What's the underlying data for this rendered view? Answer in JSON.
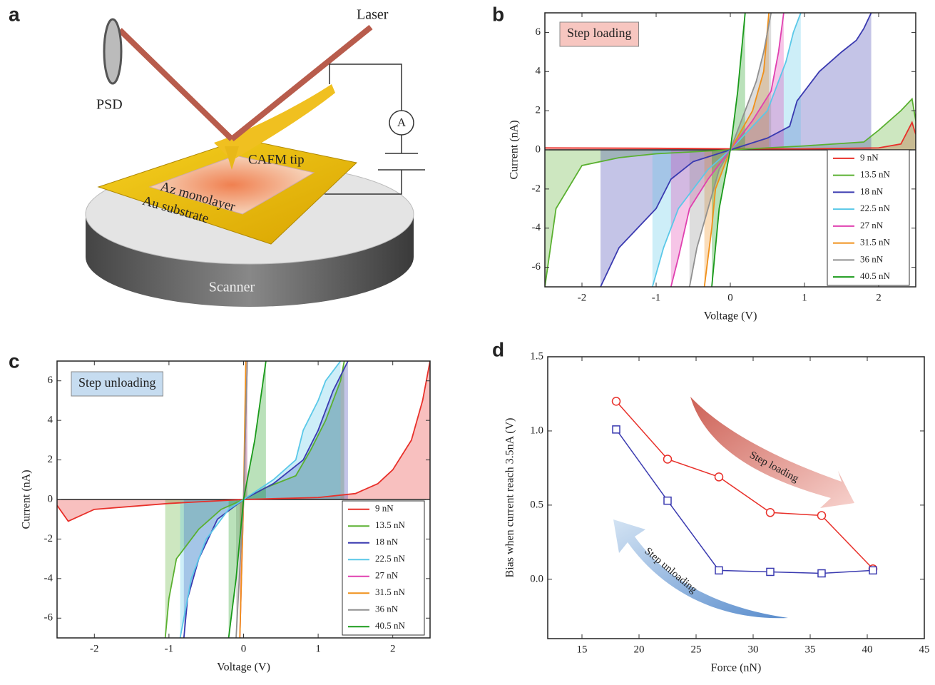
{
  "diagram": {
    "panel": "a",
    "laser": "Laser",
    "psd": "PSD",
    "ammeter": "A",
    "tip": "CAFM tip",
    "monolayer": "Az monolayer",
    "substrate": "Au substrate",
    "scanner": "Scanner"
  },
  "chart_data": [
    {
      "type": "area",
      "panel": "b",
      "annotation": "Step loading",
      "xlabel": "Voltage (V)",
      "ylabel": "Current (nA)",
      "xlim": [
        -2.5,
        2.5
      ],
      "ylim": [
        -7,
        7
      ],
      "xticks": [
        -2,
        -1,
        0,
        1,
        2
      ],
      "yticks": [
        -6,
        -4,
        -2,
        0,
        2,
        4,
        6
      ],
      "series": [
        {
          "name": "9 nN",
          "color": "#e8302a",
          "x": [
            -2.5,
            -1,
            0,
            1,
            2,
            2.3,
            2.45,
            2.5
          ],
          "values": [
            0.1,
            0.08,
            0.05,
            0.05,
            0.1,
            0.3,
            1.4,
            0.8
          ]
        },
        {
          "name": "13.5 nN",
          "color": "#5ab030",
          "x": [
            -2.5,
            -2.35,
            -2,
            -1.5,
            -1,
            0,
            1,
            1.8,
            2,
            2.3,
            2.45,
            2.5
          ],
          "values": [
            -7,
            -3,
            -0.8,
            -0.4,
            -0.2,
            0,
            0.2,
            0.4,
            1,
            2,
            2.6,
            1.5
          ]
        },
        {
          "name": "18 nN",
          "color": "#3a3ab0",
          "x": [
            -1.75,
            -1.5,
            -1,
            -0.8,
            -0.5,
            0,
            0.5,
            0.8,
            0.9,
            1.2,
            1.5,
            1.7,
            1.8,
            1.9
          ],
          "values": [
            -7,
            -5,
            -3,
            -1.5,
            -0.6,
            0,
            0.6,
            1.2,
            2.5,
            4,
            5,
            5.6,
            6.2,
            7
          ]
        },
        {
          "name": "22.5 nN",
          "color": "#5ac8e8",
          "x": [
            -1.05,
            -0.9,
            -0.7,
            -0.5,
            -0.3,
            0,
            0.3,
            0.5,
            0.6,
            0.75,
            0.85,
            0.95
          ],
          "values": [
            -7,
            -5,
            -3,
            -2,
            -1,
            0,
            1.2,
            2,
            3,
            4.5,
            6,
            7
          ]
        },
        {
          "name": "27 nN",
          "color": "#e040b0",
          "x": [
            -0.8,
            -0.7,
            -0.55,
            -0.3,
            0,
            0.3,
            0.55,
            0.65,
            0.72
          ],
          "values": [
            -7,
            -5.5,
            -3,
            -1.5,
            0,
            1.5,
            3,
            5,
            7
          ]
        },
        {
          "name": "31.5 nN",
          "color": "#f0901a",
          "x": [
            -0.35,
            -0.25,
            -0.2,
            0,
            0.3,
            0.45,
            0.52
          ],
          "values": [
            -7,
            -4,
            -2,
            0,
            2,
            4,
            7
          ]
        },
        {
          "name": "36 nN",
          "color": "#909090",
          "x": [
            -0.55,
            -0.45,
            -0.3,
            -0.15,
            0,
            0.2,
            0.35,
            0.45,
            0.55
          ],
          "values": [
            -7,
            -5,
            -3,
            -1,
            0,
            2,
            3.5,
            5,
            7
          ]
        },
        {
          "name": "40.5 nN",
          "color": "#1a9a1a",
          "x": [
            -0.25,
            -0.15,
            0,
            0.1,
            0.2
          ],
          "values": [
            -7,
            -3,
            0,
            3,
            7
          ]
        }
      ]
    },
    {
      "type": "area",
      "panel": "c",
      "annotation": "Step unloading",
      "xlabel": "Voltage (V)",
      "ylabel": "Current (nA)",
      "xlim": [
        -2.5,
        2.5
      ],
      "ylim": [
        -7,
        7
      ],
      "xticks": [
        -2,
        -1,
        0,
        1,
        2
      ],
      "yticks": [
        -6,
        -4,
        -2,
        0,
        2,
        4,
        6
      ],
      "series": [
        {
          "name": "9 nN",
          "color": "#e8302a",
          "x": [
            -2.5,
            -2.35,
            -2,
            -1,
            0,
            1,
            1.5,
            1.8,
            2,
            2.25,
            2.4,
            2.5
          ],
          "values": [
            -0.3,
            -1.1,
            -0.5,
            -0.2,
            0,
            0.1,
            0.3,
            0.8,
            1.5,
            3,
            5,
            7
          ]
        },
        {
          "name": "13.5 nN",
          "color": "#5ab030",
          "x": [
            -1.05,
            -1,
            -0.9,
            -0.6,
            -0.3,
            0,
            0.3,
            0.7,
            0.9,
            1.1,
            1.3,
            1.35
          ],
          "values": [
            -7,
            -5,
            -3,
            -1.5,
            -0.5,
            0,
            0.6,
            1.2,
            2.5,
            4,
            6,
            7
          ]
        },
        {
          "name": "18 nN",
          "color": "#3a3ab0",
          "x": [
            -0.8,
            -0.75,
            -0.6,
            -0.35,
            0,
            0.4,
            0.8,
            1,
            1.2,
            1.4
          ],
          "values": [
            -7,
            -5,
            -3,
            -1,
            0,
            0.8,
            2,
            3.5,
            5.5,
            7
          ]
        },
        {
          "name": "22.5 nN",
          "color": "#5ac8e8",
          "x": [
            -0.85,
            -0.7,
            -0.5,
            -0.2,
            0,
            0.4,
            0.7,
            0.8,
            1,
            1.1,
            1.3
          ],
          "values": [
            -7,
            -4,
            -2,
            -0.5,
            0,
            1,
            2,
            3.5,
            5,
            6,
            7
          ]
        },
        {
          "name": "27 nN",
          "color": "#e040b0",
          "x": [
            -0.05,
            0,
            0.05
          ],
          "values": [
            -7,
            0,
            7
          ]
        },
        {
          "name": "31.5 nN",
          "color": "#f0901a",
          "x": [
            -0.05,
            0,
            0.03
          ],
          "values": [
            -7,
            0,
            7
          ]
        },
        {
          "name": "36 nN",
          "color": "#909090",
          "x": [
            -0.1,
            0,
            0.05
          ],
          "values": [
            -7,
            0,
            7
          ]
        },
        {
          "name": "40.5 nN",
          "color": "#1a9a1a",
          "x": [
            -0.2,
            -0.1,
            0,
            0.15,
            0.3
          ],
          "values": [
            -7,
            -4,
            0,
            3,
            7
          ]
        }
      ]
    },
    {
      "type": "line",
      "panel": "d",
      "xlabel": "Force (nN)",
      "ylabel": "Bias when current reach 3.5nA (V)",
      "xlim": [
        12,
        45
      ],
      "ylim": [
        -0.4,
        1.5
      ],
      "xticks": [
        15,
        20,
        25,
        30,
        35,
        40,
        45
      ],
      "yticks": [
        {
          "value": 0,
          "label": "0.0"
        },
        0.5,
        {
          "value": 1,
          "label": "1.0"
        },
        1.5
      ],
      "series": [
        {
          "name": "Step loading",
          "color": "#e8302a",
          "marker": "circle",
          "x": [
            18,
            22.5,
            27,
            31.5,
            36,
            40.5
          ],
          "values": [
            1.2,
            0.81,
            0.69,
            0.45,
            0.43,
            0.07
          ]
        },
        {
          "name": "Step unloading",
          "color": "#3a3ab0",
          "marker": "square",
          "x": [
            18,
            22.5,
            27,
            31.5,
            36,
            40.5
          ],
          "values": [
            1.01,
            0.53,
            0.06,
            0.05,
            0.04,
            0.06
          ]
        }
      ]
    }
  ]
}
